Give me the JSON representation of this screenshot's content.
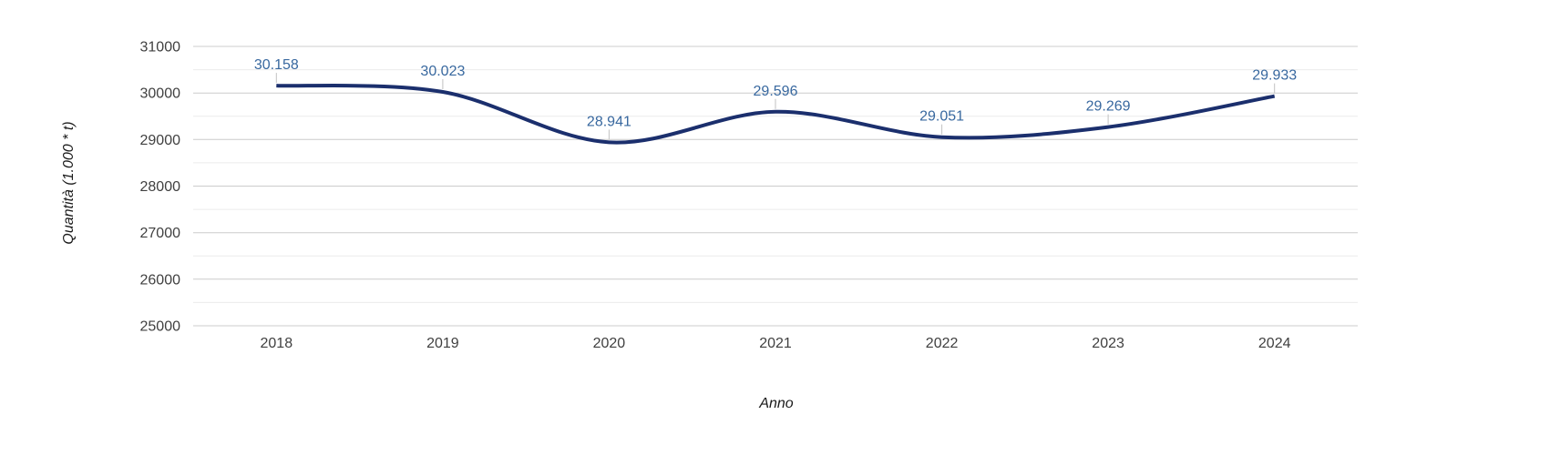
{
  "chart_data": {
    "type": "line",
    "curve": "smooth",
    "title": "",
    "legend": "none",
    "grid": true,
    "categories": [
      "2018",
      "2019",
      "2020",
      "2021",
      "2022",
      "2023",
      "2024"
    ],
    "values": [
      30158,
      30023,
      28941,
      29596,
      29051,
      29269,
      29933
    ],
    "point_labels": [
      "30.158",
      "30.023",
      "28.941",
      "29.596",
      "29.051",
      "29.269",
      "29.933"
    ],
    "xlabel": "Anno",
    "ylabel": "Quantità (1.000 * t)",
    "ylim": [
      25000,
      31000
    ],
    "y_tick_labels": [
      "25000",
      "26000",
      "27000",
      "28000",
      "29000",
      "30000",
      "31000"
    ],
    "y_major_step": 1000,
    "y_minor_step": 500,
    "colors": {
      "series_line": "#1b2f6d",
      "annotation_text": "#38689f",
      "annotation_stem": "#c2c2c2",
      "grid_major": "#cccccc",
      "grid_minor": "#ececec",
      "tick_text": "#404040",
      "axis_title_text": "#1a1a1a",
      "background": "#ffffff"
    }
  }
}
